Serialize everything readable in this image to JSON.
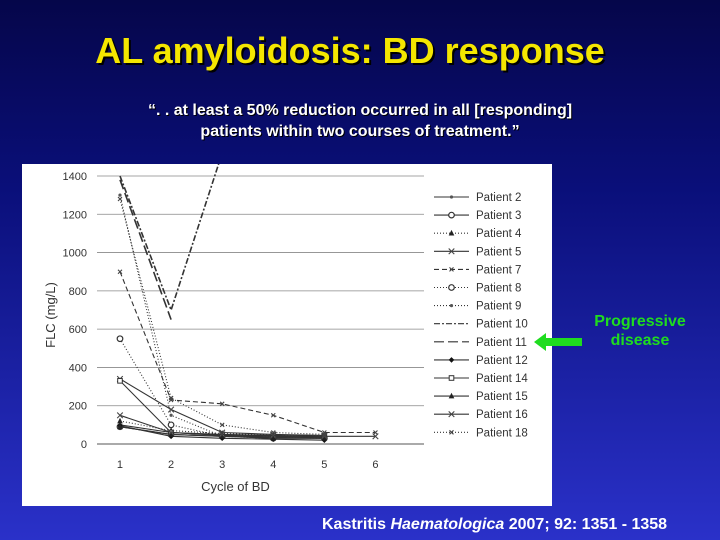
{
  "slide": {
    "title": "AL amyloidosis: BD response",
    "quote_line1": "“. . at least a 50% reduction occurred in all [responding]",
    "quote_line2": "patients within two courses of treatment.”",
    "callout_line1": "Progressive",
    "callout_line2": "disease",
    "citation": {
      "author": "Kastritis ",
      "journal": "Haematologica",
      "details": " 2007; 92: 1351 - 1358"
    },
    "colors": {
      "title": "#f4e600",
      "callout": "#1fdc1f",
      "arrow": "#1fdc1f"
    }
  },
  "chart_data": {
    "type": "line",
    "xlabel": "Cycle of BD",
    "ylabel": "FLC (mg/L)",
    "x": [
      1,
      2,
      3,
      4,
      5,
      6
    ],
    "xticks": [
      "1",
      "2",
      "3",
      "4",
      "5",
      "6"
    ],
    "yticks": [
      "0",
      "200",
      "400",
      "600",
      "800",
      "1000",
      "1200",
      "1400"
    ],
    "xlim": [
      0.55,
      6.95
    ],
    "ylim": [
      0,
      1400
    ],
    "grid": "horizontal",
    "legend_position": "right",
    "series": [
      {
        "name": "Patient 2",
        "values": [
          100,
          60,
          45,
          40,
          35,
          null
        ],
        "marker": "dot",
        "dash": ""
      },
      {
        "name": "Patient 3",
        "values": [
          90,
          50,
          40,
          35,
          30,
          null
        ],
        "marker": "circle",
        "dash": ""
      },
      {
        "name": "Patient 4",
        "values": [
          120,
          70,
          55,
          45,
          40,
          null
        ],
        "marker": "tri",
        "dash": "1,2"
      },
      {
        "name": "Patient 5",
        "values": [
          340,
          180,
          60,
          50,
          45,
          null
        ],
        "marker": "x",
        "dash": ""
      },
      {
        "name": "Patient 7",
        "values": [
          900,
          230,
          210,
          150,
          60,
          60
        ],
        "marker": "xsmall",
        "dash": "5,3"
      },
      {
        "name": "Patient 8",
        "values": [
          550,
          100,
          40,
          30,
          null,
          null
        ],
        "marker": "circle",
        "dash": "1,2"
      },
      {
        "name": "Patient 9",
        "values": [
          1300,
          150,
          40,
          35,
          30,
          null
        ],
        "marker": "dot",
        "dash": "1,2"
      },
      {
        "name": "Patient 10",
        "values": [
          1400,
          700,
          1520,
          null,
          null,
          null
        ],
        "marker": "none",
        "dash": "6,2,2,2"
      },
      {
        "name": "Patient 11",
        "values": [
          1380,
          650,
          null,
          null,
          null,
          null
        ],
        "marker": "none",
        "dash": "10,4"
      },
      {
        "name": "Patient 12",
        "values": [
          95,
          40,
          30,
          25,
          20,
          null
        ],
        "marker": "diamond",
        "dash": ""
      },
      {
        "name": "Patient 14",
        "values": [
          330,
          60,
          45,
          40,
          35,
          null
        ],
        "marker": "square",
        "dash": ""
      },
      {
        "name": "Patient 15",
        "values": [
          90,
          50,
          40,
          30,
          30,
          null
        ],
        "marker": "tri",
        "dash": ""
      },
      {
        "name": "Patient 16",
        "values": [
          150,
          60,
          50,
          45,
          40,
          40
        ],
        "marker": "x",
        "dash": ""
      },
      {
        "name": "Patient 18",
        "values": [
          1280,
          240,
          100,
          60,
          50,
          null
        ],
        "marker": "xsmall",
        "dash": "1,2"
      }
    ]
  }
}
